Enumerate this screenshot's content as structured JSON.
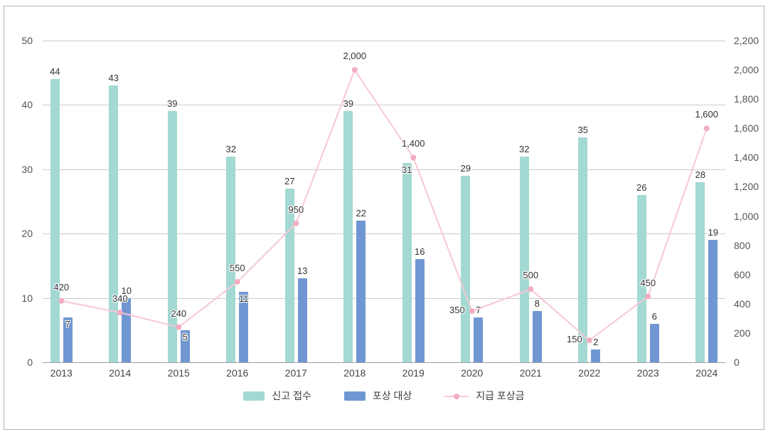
{
  "chart_data": {
    "type": "bar",
    "title": "",
    "categories": [
      "2013",
      "2014",
      "2015",
      "2016",
      "2017",
      "2018",
      "2019",
      "2020",
      "2021",
      "2022",
      "2023",
      "2024"
    ],
    "series": [
      {
        "name": "신고 접수",
        "type": "bar",
        "axis": "left",
        "color": "#a3d9d2",
        "values": [
          44,
          43,
          39,
          32,
          27,
          39,
          31,
          29,
          32,
          35,
          26,
          28
        ],
        "label_positions": [
          "above",
          "above",
          "above",
          "above",
          "above",
          "above",
          "inside",
          "above",
          "above",
          "above",
          "above",
          "above"
        ]
      },
      {
        "name": "포상 대상",
        "type": "bar",
        "axis": "left",
        "color": "#7097d3",
        "values": [
          7,
          10,
          5,
          11,
          13,
          22,
          16,
          7,
          8,
          2,
          6,
          19
        ],
        "label_positions": [
          "inside",
          "above",
          "inside",
          "inside",
          "above",
          "above",
          "above",
          "above",
          "above",
          "above",
          "above",
          "above"
        ]
      },
      {
        "name": "지급 포상금",
        "type": "line",
        "axis": "right",
        "color": "#f6c9d5",
        "marker_color": "#f2adc0",
        "values": [
          420,
          340,
          240,
          550,
          950,
          2000,
          1400,
          350,
          500,
          150,
          450,
          1600
        ],
        "label_positions": [
          "above",
          "above",
          "above",
          "above",
          "above",
          "above",
          "above",
          "left",
          "above",
          "left",
          "above",
          "above"
        ]
      }
    ],
    "axes": {
      "left": {
        "min": 0,
        "max": 50,
        "step": 10,
        "ticks": [
          "0",
          "10",
          "20",
          "30",
          "40",
          "50"
        ]
      },
      "right": {
        "min": 0,
        "max": 2200,
        "step": 200,
        "ticks": [
          "0",
          "200",
          "400",
          "600",
          "800",
          "1,000",
          "1,200",
          "1,400",
          "1,600",
          "1,800",
          "2,000",
          "2,200"
        ]
      }
    },
    "grid": true,
    "legend_position": "bottom"
  },
  "styles": {
    "grid_color": "#cccccc",
    "baseline_color": "#9e9e9e",
    "frame_border": "#b3b3b3",
    "tick_color": "#555555",
    "data_label_color": "#333333"
  }
}
